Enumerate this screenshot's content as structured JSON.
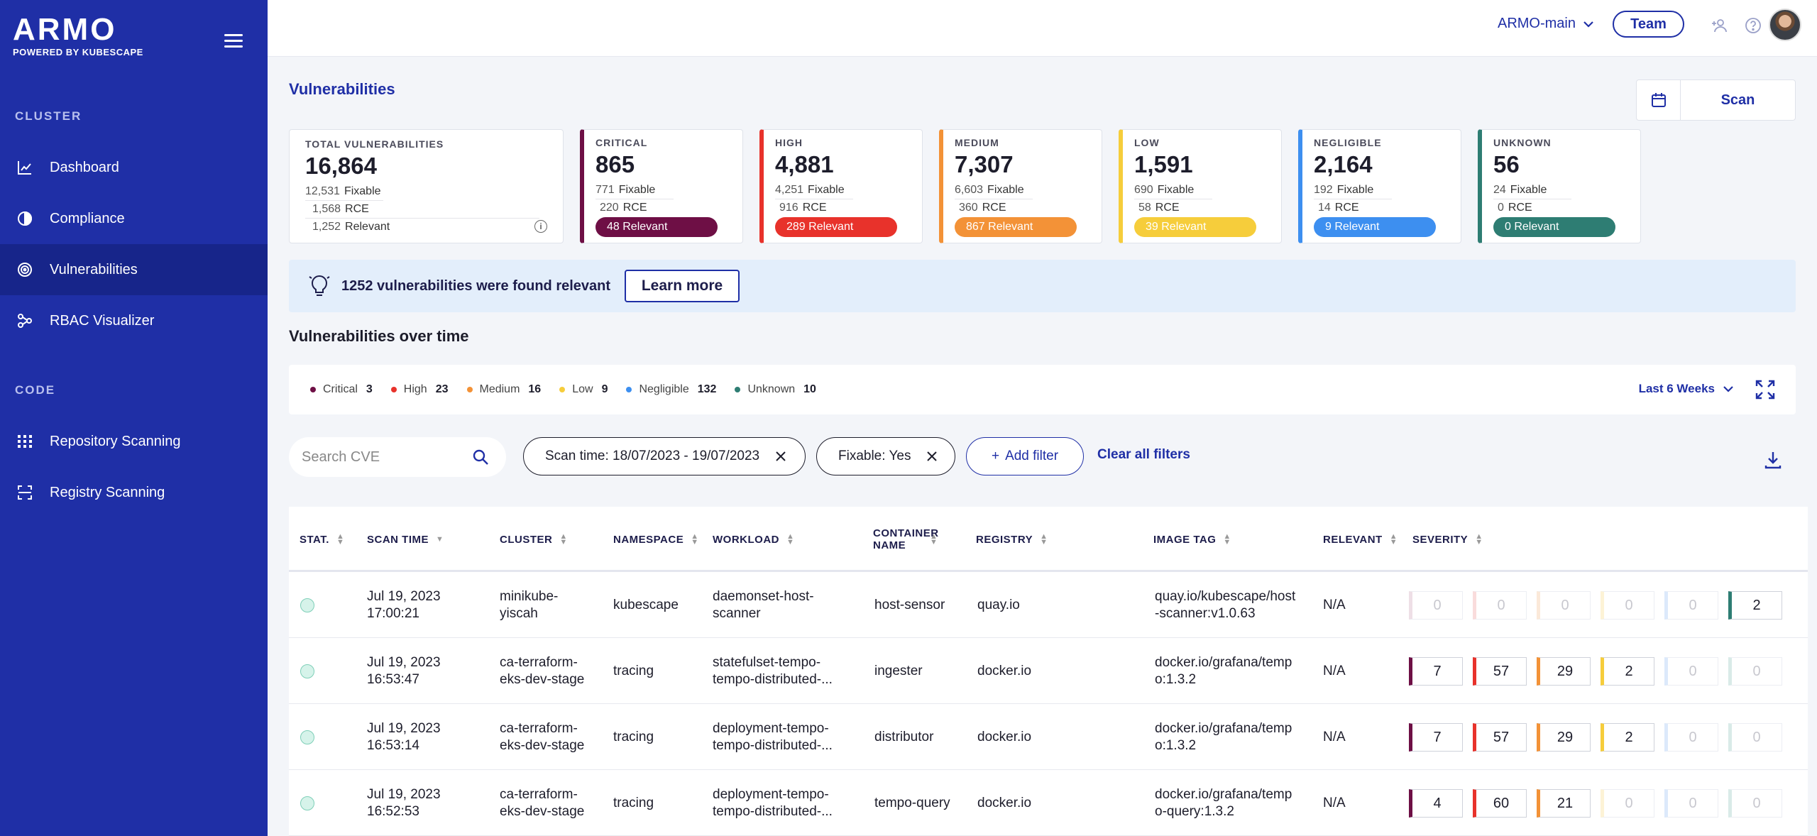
{
  "sidebar": {
    "logo": "ARMO",
    "logo_sub": "POWERED BY KUBESCAPE",
    "sections": [
      {
        "title": "CLUSTER",
        "items": [
          {
            "label": "Dashboard",
            "icon": "chart-icon"
          },
          {
            "label": "Compliance",
            "icon": "compliance-icon"
          },
          {
            "label": "Vulnerabilities",
            "icon": "vulnerability-icon",
            "active": true
          },
          {
            "label": "RBAC Visualizer",
            "icon": "graph-icon"
          }
        ]
      },
      {
        "title": "CODE",
        "items": [
          {
            "label": "Repository Scanning",
            "icon": "grid-icon"
          },
          {
            "label": "Registry Scanning",
            "icon": "scan-icon"
          }
        ]
      }
    ]
  },
  "topbar": {
    "account": "ARMO-main",
    "team_label": "Team"
  },
  "page": {
    "title": "Vulnerabilities",
    "scan_label": "Scan"
  },
  "total": {
    "label": "TOTAL VULNERABILITIES",
    "value": "16,864",
    "fixable_num": "12,531",
    "fixable_label": "Fixable",
    "rce_num": "1,568",
    "rce_label": "RCE",
    "relevant_num": "1,252",
    "relevant_label": "Relevant"
  },
  "severities": [
    {
      "label": "CRITICAL",
      "value": "865",
      "fixable": "771",
      "rce": "220",
      "relevant": "48 Relevant",
      "color": "#6e0f45"
    },
    {
      "label": "HIGH",
      "value": "4,881",
      "fixable": "4,251",
      "rce": "916",
      "relevant": "289 Relevant",
      "color": "#e8322b"
    },
    {
      "label": "MEDIUM",
      "value": "7,307",
      "fixable": "6,603",
      "rce": "360",
      "relevant": "867 Relevant",
      "color": "#f39237"
    },
    {
      "label": "LOW",
      "value": "1,591",
      "fixable": "690",
      "rce": "58",
      "relevant": "39 Relevant",
      "color": "#f6cd3b"
    },
    {
      "label": "NEGLIGIBLE",
      "value": "2,164",
      "fixable": "192",
      "rce": "14",
      "relevant": "9 Relevant",
      "color": "#3d8ff0"
    },
    {
      "label": "UNKNOWN",
      "value": "56",
      "fixable": "24",
      "rce": "0",
      "relevant": "0 Relevant",
      "color": "#2e7d73"
    }
  ],
  "severity_labels": {
    "fixable": "Fixable",
    "rce": "RCE"
  },
  "banner": {
    "text": "1252 vulnerabilities were found relevant",
    "button": "Learn more"
  },
  "over_time": {
    "title": "Vulnerabilities over time",
    "legend": [
      {
        "label": "Critical",
        "count": "3",
        "color": "#6e0f45"
      },
      {
        "label": "High",
        "count": "23",
        "color": "#e8322b"
      },
      {
        "label": "Medium",
        "count": "16",
        "color": "#f39237"
      },
      {
        "label": "Low",
        "count": "9",
        "color": "#f6cd3b"
      },
      {
        "label": "Negligible",
        "count": "132",
        "color": "#3d8ff0"
      },
      {
        "label": "Unknown",
        "count": "10",
        "color": "#2e7d73"
      }
    ],
    "range": "Last 6 Weeks"
  },
  "filters": {
    "search_placeholder": "Search CVE",
    "chips": [
      "Scan time: 18/07/2023 - 19/07/2023",
      "Fixable: Yes"
    ],
    "add_filter": "Add filter",
    "clear": "Clear all filters"
  },
  "table": {
    "headers": [
      "STAT.",
      "SCAN TIME",
      "CLUSTER",
      "NAMESPACE",
      "WORKLOAD",
      "CONTAINER NAME",
      "REGISTRY",
      "IMAGE TAG",
      "RELEVANT",
      "SEVERITY"
    ],
    "rows": [
      {
        "time1": "Jul 19, 2023",
        "time2": "17:00:21",
        "cluster1": "minikube-",
        "cluster2": "yiscah",
        "namespace": "kubescape",
        "workload1": "daemonset-host-",
        "workload2": "scanner",
        "container": "host-sensor",
        "registry": "quay.io",
        "image1": "quay.io/kubescape/host",
        "image2": "-scanner:v1.0.63",
        "relevant": "N/A",
        "sev": [
          "0",
          "0",
          "0",
          "0",
          "0",
          "2"
        ]
      },
      {
        "time1": "Jul 19, 2023",
        "time2": "16:53:47",
        "cluster1": "ca-terraform-",
        "cluster2": "eks-dev-stage",
        "namespace": "tracing",
        "workload1": "statefulset-tempo-",
        "workload2": "tempo-distributed-...",
        "container": "ingester",
        "registry": "docker.io",
        "image1": "docker.io/grafana/temp",
        "image2": "o:1.3.2",
        "relevant": "N/A",
        "sev": [
          "7",
          "57",
          "29",
          "2",
          "0",
          "0"
        ]
      },
      {
        "time1": "Jul 19, 2023",
        "time2": "16:53:14",
        "cluster1": "ca-terraform-",
        "cluster2": "eks-dev-stage",
        "namespace": "tracing",
        "workload1": "deployment-tempo-",
        "workload2": "tempo-distributed-...",
        "container": "distributor",
        "registry": "docker.io",
        "image1": "docker.io/grafana/temp",
        "image2": "o:1.3.2",
        "relevant": "N/A",
        "sev": [
          "7",
          "57",
          "29",
          "2",
          "0",
          "0"
        ]
      },
      {
        "time1": "Jul 19, 2023",
        "time2": "16:52:53",
        "cluster1": "ca-terraform-",
        "cluster2": "eks-dev-stage",
        "namespace": "tracing",
        "workload1": "deployment-tempo-",
        "workload2": "tempo-distributed-...",
        "container": "tempo-query",
        "registry": "docker.io",
        "image1": "docker.io/grafana/temp",
        "image2": "o-query:1.3.2",
        "relevant": "N/A",
        "sev": [
          "4",
          "60",
          "21",
          "0",
          "0",
          "0"
        ]
      }
    ]
  }
}
